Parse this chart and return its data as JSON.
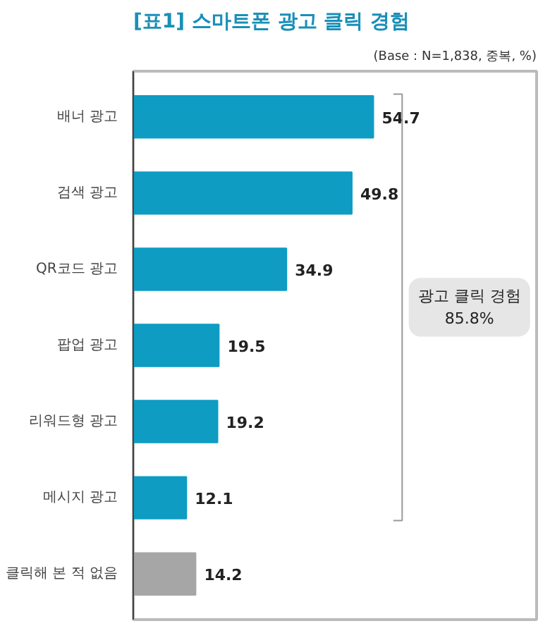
{
  "chart_data": {
    "type": "bar",
    "orientation": "horizontal",
    "title": "[표1] 스마트폰 광고 클릭 경험",
    "subtitle": "(Base : N=1,838, 중복, %)",
    "categories": [
      "배너 광고",
      "검색 광고",
      "QR코드 광고",
      "팝업 광고",
      "리워드형 광고",
      "메시지 광고",
      "클릭해 본 적 없음"
    ],
    "values": [
      54.7,
      49.8,
      34.9,
      19.5,
      19.2,
      12.1,
      14.2
    ],
    "colors": [
      "#0f9cc3",
      "#0f9cc3",
      "#0f9cc3",
      "#0f9cc3",
      "#0f9cc3",
      "#0f9cc3",
      "#a6a6a6"
    ],
    "data_labels": true,
    "grid": false,
    "annotations": [
      "광고 클릭 경험\n85.8%"
    ]
  }
}
